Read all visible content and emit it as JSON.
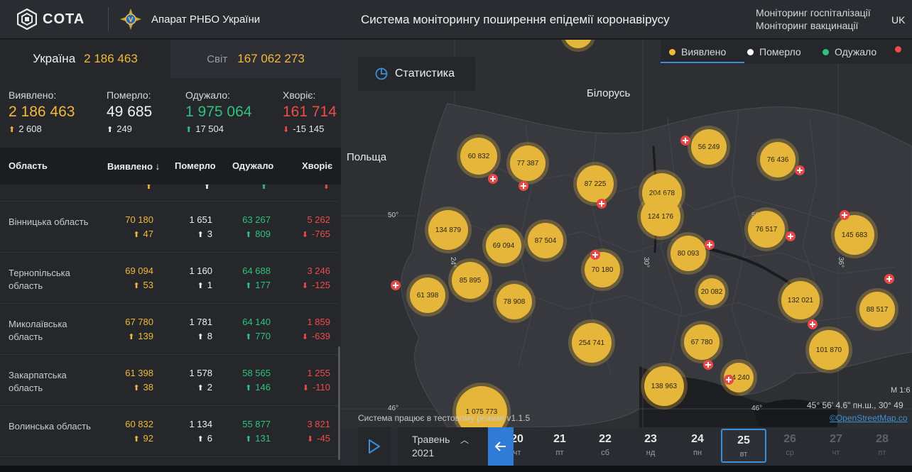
{
  "header": {
    "logo_text": "COTA",
    "org": "Апарат РНБО України",
    "title": "Система моніторингу поширення епідемії коронавірусу",
    "links": [
      "Моніторинг госпіталізації",
      "Моніторинг вакцинації"
    ],
    "lang": "UK"
  },
  "tabs": {
    "ukraine": {
      "label": "Україна",
      "value": "2 186 463"
    },
    "world": {
      "label": "Світ",
      "value": "167 062 273"
    }
  },
  "summary": {
    "detected": {
      "label": "Виявлено:",
      "value": "2 186 463",
      "delta": "2 608"
    },
    "died": {
      "label": "Померло:",
      "value": "49 685",
      "delta": "249"
    },
    "recovered": {
      "label": "Одужало:",
      "value": "1 975 064",
      "delta": "17 504"
    },
    "sick": {
      "label": "Хворіє:",
      "value": "161 714",
      "delta": "-15 145"
    }
  },
  "table": {
    "headers": {
      "region": "Область",
      "detected": "Виявлено",
      "died": "Померло",
      "recovered": "Одужало",
      "sick": "Хворіє"
    },
    "rows": [
      {
        "name": "Вінницька область",
        "detected": "70 180",
        "detected_delta": "47",
        "died": "1 651",
        "died_delta": "3",
        "recovered": "63 267",
        "recovered_delta": "809",
        "sick": "5 262",
        "sick_delta": "-765"
      },
      {
        "name": "Тернопільська область",
        "detected": "69 094",
        "detected_delta": "53",
        "died": "1 160",
        "died_delta": "1",
        "recovered": "64 688",
        "recovered_delta": "177",
        "sick": "3 246",
        "sick_delta": "-125"
      },
      {
        "name": "Миколаївська область",
        "detected": "67 780",
        "detected_delta": "139",
        "died": "1 781",
        "died_delta": "8",
        "recovered": "64 140",
        "recovered_delta": "770",
        "sick": "1 859",
        "sick_delta": "-639"
      },
      {
        "name": "Закарпатська область",
        "detected": "61 398",
        "detected_delta": "38",
        "died": "1 578",
        "died_delta": "2",
        "recovered": "58 565",
        "recovered_delta": "146",
        "sick": "1 255",
        "sick_delta": "-110"
      },
      {
        "name": "Волинська область",
        "detected": "60 832",
        "detected_delta": "92",
        "died": "1 134",
        "died_delta": "6",
        "recovered": "55 877",
        "recovered_delta": "131",
        "sick": "3 821",
        "sick_delta": "-45"
      }
    ]
  },
  "map": {
    "stat_button": "Статистика",
    "legend": [
      "Виявлено",
      "Померло",
      "Одужало"
    ],
    "legend_colors": [
      "#f2b93a",
      "#ffffff",
      "#2ec27e",
      "#f04b4b"
    ],
    "countries": [
      "Білорусь",
      "Польща"
    ],
    "lat_labels": [
      "50°",
      "46°",
      "46°",
      "50°"
    ],
    "lon_labels": [
      "24°",
      "30°",
      "36°"
    ],
    "bubbles": [
      "60 832",
      "77 387",
      "87 225",
      "204 678",
      "56 249",
      "76 436",
      "134 879",
      "69 094",
      "87 504",
      "124 176",
      "76 517",
      "145 683",
      "80 093",
      "70 180",
      "85 895",
      "61 398",
      "78 908",
      "20 082",
      "132 021",
      "88 517",
      "254 741",
      "67 780",
      "101 870",
      "138 963",
      "34 240",
      "1 075 773"
    ],
    "system_note": "Система працює в тестовому режимі v1.1.5",
    "coords": "45° 56' 4.6\" пн.ш., 30° 49",
    "scale": "M 1:6",
    "attribution": "©OpenStreetMap.co"
  },
  "timeline": {
    "month": "Травень",
    "year": "2021",
    "days": [
      {
        "d": "20",
        "wd": "чт"
      },
      {
        "d": "21",
        "wd": "пт"
      },
      {
        "d": "22",
        "wd": "сб"
      },
      {
        "d": "23",
        "wd": "нд"
      },
      {
        "d": "24",
        "wd": "пн"
      },
      {
        "d": "25",
        "wd": "вт"
      },
      {
        "d": "26",
        "wd": "ср"
      },
      {
        "d": "27",
        "wd": "чт"
      },
      {
        "d": "28",
        "wd": "пт"
      }
    ]
  }
}
